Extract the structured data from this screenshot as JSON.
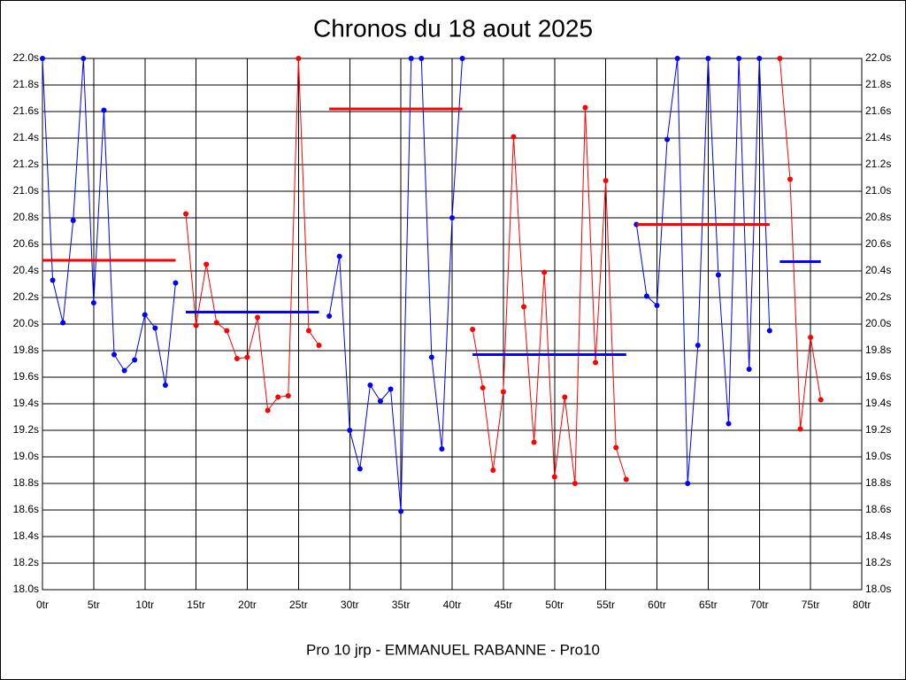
{
  "chart_data": {
    "type": "line",
    "title": "Chronos du 18 aout 2025",
    "x_label": "Pro 10 jrp - EMMANUEL RABANNE - Pro10",
    "x": [
      0,
      1,
      2,
      3,
      4,
      5,
      6,
      7,
      8,
      9,
      10,
      11,
      12,
      13,
      14,
      15,
      16,
      17,
      18,
      19,
      20,
      21,
      22,
      23,
      24,
      25,
      26,
      27,
      28,
      29,
      30,
      31,
      32,
      33,
      34,
      35,
      36,
      37,
      38,
      39,
      40,
      41,
      42,
      43,
      44,
      45,
      46,
      47,
      48,
      49,
      50,
      51,
      52,
      53,
      54,
      55,
      56,
      57,
      58,
      59,
      60,
      61,
      62,
      63,
      64,
      65,
      66,
      67,
      68,
      69,
      70,
      71,
      72,
      73,
      74,
      75,
      76
    ],
    "series": [
      {
        "color": "#0000ff",
        "values": [
          22.0,
          20.33,
          20.01,
          20.78,
          22.0,
          20.16,
          21.61,
          19.77,
          19.65,
          19.73,
          20.07,
          19.97,
          19.54,
          20.31,
          null,
          null,
          null,
          null,
          null,
          null,
          null,
          null,
          null,
          null,
          null,
          null,
          null,
          null,
          20.06,
          20.51,
          19.2,
          18.91,
          19.54,
          19.42,
          19.51,
          18.59,
          22.0,
          22.0,
          19.75,
          19.06,
          20.8,
          22.0,
          null,
          null,
          null,
          null,
          null,
          null,
          null,
          null,
          null,
          null,
          null,
          null,
          null,
          null,
          null,
          null,
          20.75,
          20.21,
          20.14,
          21.39,
          22.0,
          18.8,
          19.84,
          22.0,
          20.37,
          19.25,
          22.0,
          19.66,
          22.0,
          19.95,
          null,
          null,
          null,
          null,
          null
        ]
      },
      {
        "color": "#ff0000",
        "values": [
          null,
          null,
          null,
          null,
          null,
          null,
          null,
          null,
          null,
          null,
          null,
          null,
          null,
          null,
          20.83,
          19.99,
          20.45,
          20.01,
          19.95,
          19.74,
          19.75,
          20.05,
          19.35,
          19.45,
          19.46,
          22.0,
          19.95,
          19.84,
          null,
          null,
          null,
          null,
          null,
          null,
          null,
          null,
          null,
          null,
          null,
          null,
          null,
          null,
          19.96,
          19.52,
          18.9,
          19.49,
          21.41,
          20.13,
          19.11,
          20.39,
          18.85,
          19.45,
          18.8,
          21.63,
          19.71,
          21.08,
          19.07,
          18.83,
          null,
          null,
          null,
          null,
          null,
          null,
          null,
          null,
          null,
          null,
          null,
          null,
          null,
          null,
          22.0,
          21.09,
          19.21,
          19.9,
          19.43
        ]
      }
    ],
    "averages": [
      {
        "x": [
          0,
          13
        ],
        "value": 20.48,
        "color": "#ff0000"
      },
      {
        "x": [
          14,
          27
        ],
        "value": 20.09,
        "color": "#0000ff"
      },
      {
        "x": [
          28,
          41
        ],
        "value": 21.62,
        "color": "#ff0000"
      },
      {
        "x": [
          42,
          57
        ],
        "value": 19.77,
        "color": "#0000ff"
      },
      {
        "x": [
          58,
          71
        ],
        "value": 20.75,
        "color": "#ff0000"
      },
      {
        "x": [
          72,
          76
        ],
        "value": 20.47,
        "color": "#0000ff"
      }
    ],
    "xlim": [
      0,
      80
    ],
    "ylim": [
      18,
      22
    ],
    "xticks": [
      {
        "value": 0,
        "label": "0tr"
      },
      {
        "value": 5,
        "label": "5tr"
      },
      {
        "value": 10,
        "label": "10tr"
      },
      {
        "value": 15,
        "label": "15tr"
      },
      {
        "value": 20,
        "label": "20tr"
      },
      {
        "value": 25,
        "label": "25tr"
      },
      {
        "value": 30,
        "label": "30tr"
      },
      {
        "value": 35,
        "label": "35tr"
      },
      {
        "value": 40,
        "label": "40tr"
      },
      {
        "value": 45,
        "label": "45tr"
      },
      {
        "value": 50,
        "label": "50tr"
      },
      {
        "value": 55,
        "label": "55tr"
      },
      {
        "value": 60,
        "label": "60tr"
      },
      {
        "value": 65,
        "label": "65tr"
      },
      {
        "value": 70,
        "label": "70tr"
      },
      {
        "value": 75,
        "label": "75tr"
      },
      {
        "value": 80,
        "label": "80tr"
      }
    ],
    "yticks": [
      {
        "value": 18.0,
        "label": "18.0s"
      },
      {
        "value": 18.2,
        "label": "18.2s"
      },
      {
        "value": 18.4,
        "label": "18.4s"
      },
      {
        "value": 18.6,
        "label": "18.6s"
      },
      {
        "value": 18.8,
        "label": "18.8s"
      },
      {
        "value": 19.0,
        "label": "19.0s"
      },
      {
        "value": 19.2,
        "label": "19.2s"
      },
      {
        "value": 19.4,
        "label": "19.4s"
      },
      {
        "value": 19.6,
        "label": "19.6s"
      },
      {
        "value": 19.8,
        "label": "19.8s"
      },
      {
        "value": 20.0,
        "label": "20.0s"
      },
      {
        "value": 20.2,
        "label": "20.2s"
      },
      {
        "value": 20.4,
        "label": "20.4s"
      },
      {
        "value": 20.6,
        "label": "20.6s"
      },
      {
        "value": 20.8,
        "label": "20.8s"
      },
      {
        "value": 21.0,
        "label": "21.0s"
      },
      {
        "value": 21.2,
        "label": "21.2s"
      },
      {
        "value": 21.4,
        "label": "21.4s"
      },
      {
        "value": 21.6,
        "label": "21.6s"
      },
      {
        "value": 21.8,
        "label": "21.8s"
      },
      {
        "value": 22.0,
        "label": "22.0s"
      }
    ],
    "grid": true
  }
}
